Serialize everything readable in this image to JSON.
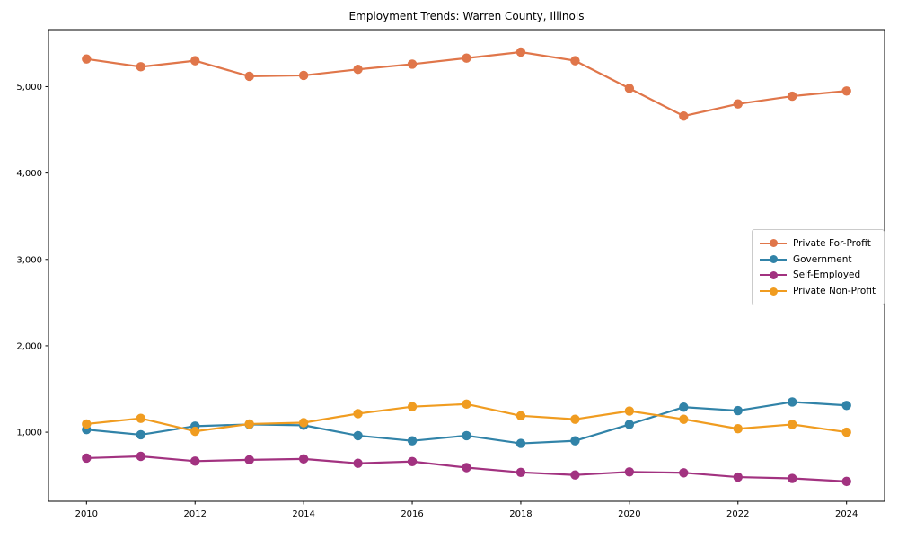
{
  "title": "Employment Trends: Warren County, Illinois",
  "chart_data": {
    "type": "line",
    "title": "Employment Trends: Warren County, Illinois",
    "xlabel": "",
    "ylabel": "",
    "grid": false,
    "legend_position": "center right",
    "xlim": [
      2009.3,
      2024.7
    ],
    "ylim": [
      200,
      5660
    ],
    "xticks": [
      2010,
      2012,
      2014,
      2016,
      2018,
      2020,
      2022,
      2024
    ],
    "xtick_labels": [
      "2010",
      "2012",
      "2014",
      "2016",
      "2018",
      "2020",
      "2022",
      "2024"
    ],
    "yticks": [
      1000,
      2000,
      3000,
      4000,
      5000
    ],
    "ytick_labels": [
      "1,000",
      "2,000",
      "3,000",
      "4,000",
      "5,000"
    ],
    "x": [
      2010,
      2011,
      2012,
      2013,
      2014,
      2015,
      2016,
      2017,
      2018,
      2019,
      2020,
      2021,
      2022,
      2023,
      2024
    ],
    "series": [
      {
        "name": "Private For-Profit",
        "color": "#e0764a",
        "values": [
          5320,
          5230,
          5300,
          5120,
          5130,
          5200,
          5260,
          5330,
          5400,
          5300,
          4980,
          4660,
          4800,
          4890,
          4950
        ]
      },
      {
        "name": "Government",
        "color": "#3183a8",
        "values": [
          1030,
          970,
          1070,
          1090,
          1080,
          960,
          900,
          960,
          870,
          900,
          1090,
          1290,
          1250,
          1350,
          1310
        ]
      },
      {
        "name": "Self-Employed",
        "color": "#a23280",
        "values": [
          700,
          720,
          665,
          680,
          690,
          640,
          660,
          590,
          535,
          505,
          540,
          530,
          480,
          465,
          430
        ]
      },
      {
        "name": "Private Non-Profit",
        "color": "#f09c20",
        "values": [
          1095,
          1160,
          1010,
          1095,
          1110,
          1215,
          1295,
          1325,
          1190,
          1150,
          1245,
          1150,
          1040,
          1090,
          1000
        ]
      }
    ]
  }
}
